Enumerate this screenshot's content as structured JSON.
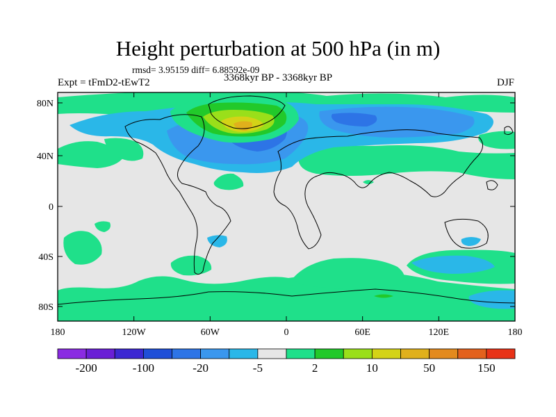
{
  "title": "Height perturbation at 500 hPa (in m)",
  "stats": "rmsd= 3.95159 diff= 6.88592e-09",
  "experiment": "Expt = tFmD2-tEwT2",
  "period": "3368kyr BP - 3368kyr BP",
  "season": "DJF",
  "axes": {
    "lat_ticks": [
      "80N",
      "40N",
      "0",
      "40S",
      "80S"
    ],
    "lon_ticks": [
      "180",
      "120W",
      "60W",
      "0",
      "60E",
      "120E",
      "180"
    ]
  },
  "colorbar": {
    "colors": [
      "#8a2be2",
      "#6a1fd6",
      "#3c28d2",
      "#1f4fd8",
      "#2d74e6",
      "#3a97ee",
      "#2ab7e8",
      "#e6e6e6",
      "#1fe08a",
      "#22c92a",
      "#9adf1a",
      "#d4d317",
      "#e0b01c",
      "#e38a1e",
      "#e3611d",
      "#e83217"
    ],
    "labels": [
      "-200",
      "-100",
      "-20",
      "-5",
      "2",
      "10",
      "50",
      "150"
    ]
  },
  "field_colors": {
    "neutral": "#e6e6e6",
    "light_blue": "#2ab7e8",
    "mid_blue": "#3a97ee",
    "blue": "#2d74e6",
    "light_green": "#1fe08a",
    "green": "#22c92a",
    "yellow_green": "#9adf1a",
    "yellow": "#d4d317",
    "orange": "#e0b01c"
  }
}
